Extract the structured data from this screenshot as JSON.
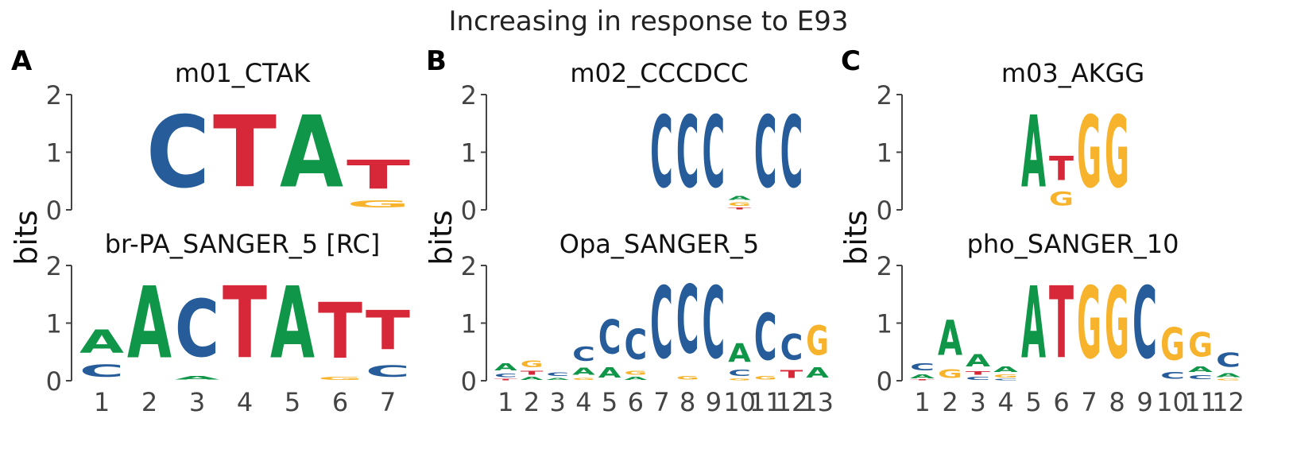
{
  "figure_title": "Increasing in response to E93",
  "y_axis_label": "bits",
  "colors": {
    "A": "#109648",
    "C": "#255C99",
    "G": "#F7B32B",
    "T": "#D62839",
    "axis": "#444444"
  },
  "chart_data": [
    {
      "panel": "A",
      "ylabel": "bits",
      "top": {
        "type": "sequence-logo",
        "title": "m01_CTAK",
        "ylim": [
          0,
          2
        ],
        "yticks": [
          "0",
          "1",
          "2"
        ],
        "xticks": [],
        "positions": [
          [],
          [
            [
              "C",
              2.0
            ]
          ],
          [
            [
              "T",
              2.0
            ]
          ],
          [
            [
              "A",
              2.0
            ]
          ],
          [
            [
              "G",
              0.2
            ],
            [
              "T",
              0.8
            ]
          ]
        ]
      },
      "bottom": {
        "type": "sequence-logo",
        "title": "br-PA_SANGER_5 [RC]",
        "ylim": [
          0,
          2
        ],
        "yticks": [
          "0",
          "1",
          "2"
        ],
        "xticks": [
          "1",
          "2",
          "3",
          "4",
          "5",
          "6",
          "7"
        ],
        "positions": [
          [
            [
              "C",
              0.35
            ],
            [
              "A",
              0.65
            ]
          ],
          [
            [
              "A",
              2.0
            ]
          ],
          [
            [
              "A",
              0.1
            ],
            [
              "C",
              1.6
            ]
          ],
          [
            [
              "T",
              2.0
            ]
          ],
          [
            [
              "A",
              2.0
            ]
          ],
          [
            [
              "G",
              0.08
            ],
            [
              "T",
              1.55
            ]
          ],
          [
            [
              "C",
              0.32
            ],
            [
              "T",
              1.1
            ]
          ]
        ]
      }
    },
    {
      "panel": "B",
      "ylabel": "bits",
      "top": {
        "type": "sequence-logo",
        "title": "m02_CCCDCC",
        "ylim": [
          0,
          2
        ],
        "yticks": [
          "0",
          "1",
          "2"
        ],
        "xticks": [],
        "positions": [
          [],
          [],
          [],
          [],
          [],
          [],
          [
            [
              "C",
              2.0
            ]
          ],
          [
            [
              "C",
              2.0
            ]
          ],
          [
            [
              "C",
              2.0
            ]
          ],
          [
            [
              "T",
              0.05
            ],
            [
              "G",
              0.1
            ],
            [
              "A",
              0.12
            ]
          ],
          [
            [
              "C",
              2.0
            ]
          ],
          [
            [
              "C",
              2.0
            ]
          ],
          []
        ]
      },
      "bottom": {
        "type": "sequence-logo",
        "title": "Opa_SANGER_5",
        "ylim": [
          0,
          2
        ],
        "yticks": [
          "0",
          "1",
          "2"
        ],
        "xticks": [
          "1",
          "2",
          "3",
          "4",
          "5",
          "6",
          "7",
          "8",
          "9",
          "10",
          "11",
          "12",
          "13"
        ],
        "positions": [
          [
            [
              "T",
              0.04
            ],
            [
              "C",
              0.1
            ],
            [
              "A",
              0.2
            ]
          ],
          [
            [
              "A",
              0.08
            ],
            [
              "T",
              0.12
            ],
            [
              "G",
              0.18
            ]
          ],
          [
            [
              "A",
              0.06
            ],
            [
              "C",
              0.1
            ]
          ],
          [
            [
              "G",
              0.06
            ],
            [
              "A",
              0.2
            ],
            [
              "C",
              0.4
            ]
          ],
          [
            [
              "A",
              0.28
            ],
            [
              "C",
              0.95
            ]
          ],
          [
            [
              "A",
              0.08
            ],
            [
              "G",
              0.12
            ],
            [
              "C",
              0.85
            ]
          ],
          [
            [
              "C",
              2.0
            ]
          ],
          [
            [
              "G",
              0.1
            ],
            [
              "C",
              1.9
            ]
          ],
          [
            [
              "C",
              2.0
            ]
          ],
          [
            [
              "G",
              0.05
            ],
            [
              "C",
              0.17
            ],
            [
              "A",
              0.52
            ],
            [
              "C",
              0.0
            ]
          ],
          [
            [
              "G",
              0.1
            ],
            [
              "C",
              1.3
            ]
          ],
          [
            [
              "T",
              0.22
            ],
            [
              "C",
              0.72
            ]
          ],
          [
            [
              "A",
              0.28
            ],
            [
              "G",
              0.82
            ]
          ]
        ]
      }
    },
    {
      "panel": "C",
      "ylabel": "bits",
      "top": {
        "type": "sequence-logo",
        "title": "m03_AKGG",
        "ylim": [
          0,
          2
        ],
        "yticks": [
          "0",
          "1",
          "2"
        ],
        "xticks": [],
        "positions": [
          [],
          [],
          [],
          [],
          [
            [
              "A",
              2.0
            ]
          ],
          [
            [
              "G",
              0.38
            ],
            [
              "T",
              0.68
            ]
          ],
          [
            [
              "G",
              2.0
            ]
          ],
          [
            [
              "G",
              2.0
            ]
          ],
          [],
          [],
          [],
          []
        ]
      },
      "bottom": {
        "type": "sequence-logo",
        "title": "pho_SANGER_10",
        "ylim": [
          0,
          2
        ],
        "yticks": [
          "0",
          "1",
          "2"
        ],
        "xticks": [
          "1",
          "2",
          "3",
          "4",
          "5",
          "6",
          "7",
          "8",
          "9",
          "10",
          "11",
          "12"
        ],
        "positions": [
          [
            [
              "T",
              0.02
            ],
            [
              "A",
              0.12
            ],
            [
              "C",
              0.2
            ]
          ],
          [
            [
              "G",
              0.25
            ],
            [
              "A",
              0.98
            ]
          ],
          [
            [
              "C",
              0.08
            ],
            [
              "T",
              0.1
            ],
            [
              "A",
              0.34
            ]
          ],
          [
            [
              "C",
              0.04
            ],
            [
              "G",
              0.08
            ],
            [
              "A",
              0.16
            ]
          ],
          [
            [
              "A",
              2.0
            ]
          ],
          [
            [
              "T",
              2.0
            ]
          ],
          [
            [
              "G",
              2.0
            ]
          ],
          [
            [
              "G",
              2.0
            ]
          ],
          [
            [
              "C",
              2.0
            ]
          ],
          [
            [
              "C",
              0.18
            ],
            [
              "G",
              0.9
            ]
          ],
          [
            [
              "C",
              0.12
            ],
            [
              "A",
              0.16
            ],
            [
              "G",
              0.68
            ]
          ],
          [
            [
              "G",
              0.04
            ],
            [
              "A",
              0.12
            ],
            [
              "C",
              0.4
            ]
          ]
        ]
      }
    }
  ]
}
